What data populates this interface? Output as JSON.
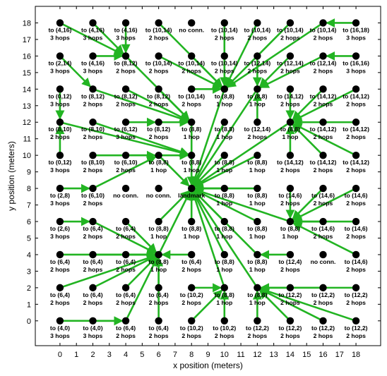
{
  "chart_data": {
    "type": "scatter",
    "title": "",
    "xlabel": "x position (meters)",
    "ylabel": "y position (meters)",
    "xlim": [
      -1.5,
      19.5
    ],
    "ylim": [
      -1.5,
      19
    ],
    "xticks": [
      0,
      1,
      2,
      3,
      4,
      5,
      6,
      7,
      8,
      9,
      10,
      11,
      12,
      13,
      14,
      15,
      16,
      17,
      18
    ],
    "yticks": [
      0,
      1,
      2,
      3,
      4,
      5,
      6,
      7,
      8,
      9,
      10,
      11,
      12,
      13,
      14,
      15,
      16,
      17,
      18
    ],
    "grid": false,
    "legend": "none",
    "colors": {
      "arrow": "#22b422",
      "node": "#000000",
      "axis": "#000000"
    },
    "nodes": [
      {
        "x": 0,
        "y": 18,
        "to": "to (4,16)",
        "hops": "3 hops"
      },
      {
        "x": 2,
        "y": 18,
        "to": "to (4,16)",
        "hops": "3 hops"
      },
      {
        "x": 4,
        "y": 18,
        "to": "to (4,16)",
        "hops": "3 hops"
      },
      {
        "x": 6,
        "y": 18,
        "to": "to (10,14)",
        "hops": "2 hops"
      },
      {
        "x": 8,
        "y": 18,
        "to": "no conn.",
        "hops": ""
      },
      {
        "x": 10,
        "y": 18,
        "to": "to (10,14)",
        "hops": "2 hops"
      },
      {
        "x": 12,
        "y": 18,
        "to": "to (10,14)",
        "hops": "2 hops"
      },
      {
        "x": 14,
        "y": 18,
        "to": "to (10,14)",
        "hops": "2 hops"
      },
      {
        "x": 16,
        "y": 18,
        "to": "to (10,14)",
        "hops": "2 hops"
      },
      {
        "x": 18,
        "y": 18,
        "to": "to (16,18)",
        "hops": "3 hops"
      },
      {
        "x": 0,
        "y": 16,
        "to": "to (2,14)",
        "hops": "3 hops"
      },
      {
        "x": 2,
        "y": 16,
        "to": "to (4,16)",
        "hops": "3 hops"
      },
      {
        "x": 4,
        "y": 16,
        "to": "to (8,12)",
        "hops": "2 hops"
      },
      {
        "x": 6,
        "y": 16,
        "to": "to (10,14)",
        "hops": "2 hops"
      },
      {
        "x": 8,
        "y": 16,
        "to": "to (10,14)",
        "hops": "2 hops"
      },
      {
        "x": 10,
        "y": 16,
        "to": "to (10,14)",
        "hops": "2 hops"
      },
      {
        "x": 12,
        "y": 16,
        "to": "to (12,14)",
        "hops": "2 hops"
      },
      {
        "x": 14,
        "y": 16,
        "to": "to (12,14)",
        "hops": "2 hops"
      },
      {
        "x": 16,
        "y": 16,
        "to": "to (12,14)",
        "hops": "2 hops"
      },
      {
        "x": 18,
        "y": 16,
        "to": "to (16,16)",
        "hops": "3 hops"
      },
      {
        "x": 0,
        "y": 14,
        "to": "to (0,12)",
        "hops": "3 hops"
      },
      {
        "x": 2,
        "y": 14,
        "to": "to (8,12)",
        "hops": "2 hops"
      },
      {
        "x": 4,
        "y": 14,
        "to": "to (8,12)",
        "hops": "2 hops"
      },
      {
        "x": 6,
        "y": 14,
        "to": "to (8,12)",
        "hops": "2 hops"
      },
      {
        "x": 8,
        "y": 14,
        "to": "to (10,14)",
        "hops": "2 hops"
      },
      {
        "x": 10,
        "y": 14,
        "to": "to (8,8)",
        "hops": "1 hop"
      },
      {
        "x": 12,
        "y": 14,
        "to": "to (8,8)",
        "hops": "1 hop"
      },
      {
        "x": 14,
        "y": 14,
        "to": "to (14,12)",
        "hops": "2 hops"
      },
      {
        "x": 16,
        "y": 14,
        "to": "to (14,12)",
        "hops": "2 hops"
      },
      {
        "x": 18,
        "y": 14,
        "to": "to (14,12)",
        "hops": "2 hops"
      },
      {
        "x": 0,
        "y": 12,
        "to": "to (8,10)",
        "hops": "2 hops"
      },
      {
        "x": 2,
        "y": 12,
        "to": "to (8,10)",
        "hops": "2 hops"
      },
      {
        "x": 4,
        "y": 12,
        "to": "to (6,12)",
        "hops": "3 hops"
      },
      {
        "x": 6,
        "y": 12,
        "to": "to (8,12)",
        "hops": "2 hops"
      },
      {
        "x": 8,
        "y": 12,
        "to": "to (8,8)",
        "hops": "1 hop"
      },
      {
        "x": 10,
        "y": 12,
        "to": "to (8,8)",
        "hops": "1 hop"
      },
      {
        "x": 12,
        "y": 12,
        "to": "to (12,14)",
        "hops": "2 hops"
      },
      {
        "x": 14,
        "y": 12,
        "to": "to (8,8)",
        "hops": "1 hop"
      },
      {
        "x": 16,
        "y": 12,
        "to": "to (14,12)",
        "hops": "2 hops"
      },
      {
        "x": 18,
        "y": 12,
        "to": "to (14,12)",
        "hops": "2 hops"
      },
      {
        "x": 0,
        "y": 10,
        "to": "to (0,12)",
        "hops": "3 hops"
      },
      {
        "x": 2,
        "y": 10,
        "to": "to (8,10)",
        "hops": "2 hops"
      },
      {
        "x": 4,
        "y": 10,
        "to": "to (6,10)",
        "hops": "2 hops"
      },
      {
        "x": 6,
        "y": 10,
        "to": "to (8,8)",
        "hops": "1 hop"
      },
      {
        "x": 8,
        "y": 10,
        "to": "to (8,8)",
        "hops": "1 hop"
      },
      {
        "x": 10,
        "y": 10,
        "to": "to (8,8)",
        "hops": "1 hop"
      },
      {
        "x": 12,
        "y": 10,
        "to": "to (8,8)",
        "hops": "1 hop"
      },
      {
        "x": 14,
        "y": 10,
        "to": "to (14,12)",
        "hops": "2 hops"
      },
      {
        "x": 16,
        "y": 10,
        "to": "to (14,12)",
        "hops": "2 hops"
      },
      {
        "x": 18,
        "y": 10,
        "to": "to (14,12)",
        "hops": "2 hops"
      },
      {
        "x": 0,
        "y": 8,
        "to": "to (2,8)",
        "hops": "3 hops"
      },
      {
        "x": 2,
        "y": 8,
        "to": "to (6,10)",
        "hops": "2 hops"
      },
      {
        "x": 4,
        "y": 8,
        "to": "no conn.",
        "hops": ""
      },
      {
        "x": 6,
        "y": 8,
        "to": "no conn.",
        "hops": ""
      },
      {
        "x": 8,
        "y": 8,
        "to": "landmark",
        "hops": ""
      },
      {
        "x": 10,
        "y": 8,
        "to": "to (8,8)",
        "hops": "1 hop"
      },
      {
        "x": 12,
        "y": 8,
        "to": "to (8,8)",
        "hops": "1 hop"
      },
      {
        "x": 14,
        "y": 8,
        "to": "to (14,6)",
        "hops": "2 hops"
      },
      {
        "x": 16,
        "y": 8,
        "to": "to (14,6)",
        "hops": "2 hops"
      },
      {
        "x": 18,
        "y": 8,
        "to": "to (14,6)",
        "hops": "2 hops"
      },
      {
        "x": 0,
        "y": 6,
        "to": "to (2,6)",
        "hops": "3 hops"
      },
      {
        "x": 2,
        "y": 6,
        "to": "to (6,4)",
        "hops": "2 hops"
      },
      {
        "x": 4,
        "y": 6,
        "to": "to (6,4)",
        "hops": "2 hops"
      },
      {
        "x": 6,
        "y": 6,
        "to": "to (8,8)",
        "hops": "1 hop"
      },
      {
        "x": 8,
        "y": 6,
        "to": "to (8,8)",
        "hops": "1 hop"
      },
      {
        "x": 10,
        "y": 6,
        "to": "to (8,8)",
        "hops": "1 hop"
      },
      {
        "x": 12,
        "y": 6,
        "to": "to (8,8)",
        "hops": "1 hop"
      },
      {
        "x": 14,
        "y": 6,
        "to": "to (8,8)",
        "hops": "1 hop"
      },
      {
        "x": 16,
        "y": 6,
        "to": "to (14,6)",
        "hops": "2 hops"
      },
      {
        "x": 18,
        "y": 6,
        "to": "to (14,6)",
        "hops": "2 hops"
      },
      {
        "x": 0,
        "y": 4,
        "to": "to (6,4)",
        "hops": "2 hops"
      },
      {
        "x": 2,
        "y": 4,
        "to": "to (6,4)",
        "hops": "2 hops"
      },
      {
        "x": 4,
        "y": 4,
        "to": "to (6,4)",
        "hops": "2 hops"
      },
      {
        "x": 6,
        "y": 4,
        "to": "to (8,8)",
        "hops": "1 hop"
      },
      {
        "x": 8,
        "y": 4,
        "to": "to (6,4)",
        "hops": "2 hops"
      },
      {
        "x": 10,
        "y": 4,
        "to": "to (8,8)",
        "hops": "1 hop"
      },
      {
        "x": 12,
        "y": 4,
        "to": "to (8,8)",
        "hops": "1 hop"
      },
      {
        "x": 14,
        "y": 4,
        "to": "to (12,4)",
        "hops": "2 hops"
      },
      {
        "x": 16,
        "y": 4,
        "to": "no conn.",
        "hops": ""
      },
      {
        "x": 18,
        "y": 4,
        "to": "to (14,6)",
        "hops": "2 hops"
      },
      {
        "x": 0,
        "y": 2,
        "to": "to (6,4)",
        "hops": "2 hops"
      },
      {
        "x": 2,
        "y": 2,
        "to": "to (6,4)",
        "hops": "2 hops"
      },
      {
        "x": 4,
        "y": 2,
        "to": "to (6,4)",
        "hops": "2 hops"
      },
      {
        "x": 6,
        "y": 2,
        "to": "to (6,4)",
        "hops": "2 hops"
      },
      {
        "x": 8,
        "y": 2,
        "to": "to (10,2)",
        "hops": "2 hops"
      },
      {
        "x": 10,
        "y": 2,
        "to": "to (8,8)",
        "hops": "1 hop"
      },
      {
        "x": 12,
        "y": 2,
        "to": "to (8,8)",
        "hops": "1 hop"
      },
      {
        "x": 14,
        "y": 2,
        "to": "to (12,2)",
        "hops": "2 hops"
      },
      {
        "x": 16,
        "y": 2,
        "to": "to (12,2)",
        "hops": "2 hops"
      },
      {
        "x": 18,
        "y": 2,
        "to": "to (12,2)",
        "hops": "2 hops"
      },
      {
        "x": 0,
        "y": 0,
        "to": "to (4,0)",
        "hops": "3 hops"
      },
      {
        "x": 2,
        "y": 0,
        "to": "to (4,0)",
        "hops": "3 hops"
      },
      {
        "x": 4,
        "y": 0,
        "to": "to (6,4)",
        "hops": "2 hops"
      },
      {
        "x": 6,
        "y": 0,
        "to": "to (6,4)",
        "hops": "2 hops"
      },
      {
        "x": 8,
        "y": 0,
        "to": "to (10,2)",
        "hops": "2 hops"
      },
      {
        "x": 10,
        "y": 0,
        "to": "to (10,2)",
        "hops": "2 hops"
      },
      {
        "x": 12,
        "y": 0,
        "to": "to (12,2)",
        "hops": "2 hops"
      },
      {
        "x": 14,
        "y": 0,
        "to": "to (12,2)",
        "hops": "2 hops"
      },
      {
        "x": 16,
        "y": 0,
        "to": "to (12,2)",
        "hops": "2 hops"
      },
      {
        "x": 18,
        "y": 0,
        "to": "to (12,2)",
        "hops": "2 hops"
      }
    ]
  }
}
